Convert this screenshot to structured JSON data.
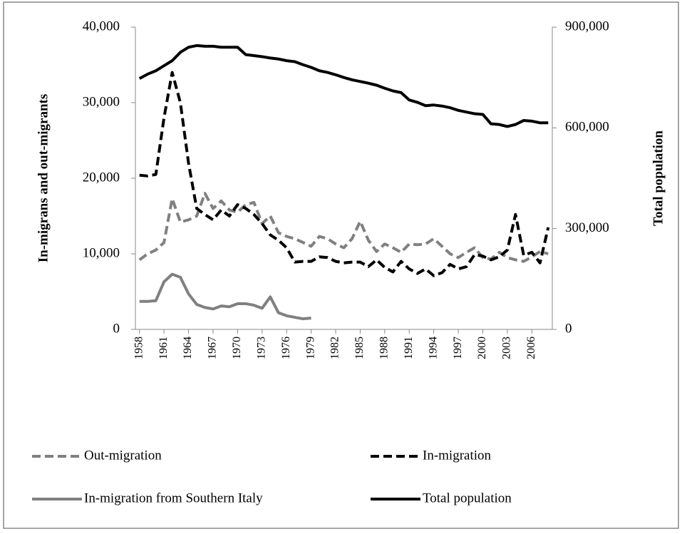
{
  "chart_data": {
    "type": "line",
    "ylabel": "In-migrans and out-migrants",
    "y2label": "Total population",
    "x": [
      1958,
      1959,
      1960,
      1961,
      1962,
      1963,
      1964,
      1965,
      1966,
      1967,
      1968,
      1969,
      1970,
      1971,
      1972,
      1973,
      1974,
      1975,
      1976,
      1977,
      1978,
      1979,
      1980,
      1981,
      1982,
      1983,
      1984,
      1985,
      1986,
      1987,
      1988,
      1989,
      1990,
      1991,
      1992,
      1993,
      1994,
      1995,
      1996,
      1997,
      1998,
      1999,
      2000,
      2001,
      2002,
      2003,
      2004,
      2005,
      2006,
      2007,
      2008
    ],
    "xlim": [
      1957.5,
      2008.5
    ],
    "xticks": [
      1958,
      1961,
      1964,
      1967,
      1970,
      1973,
      1976,
      1979,
      1982,
      1985,
      1988,
      1991,
      1994,
      1997,
      2000,
      2003,
      2006
    ],
    "ylim": [
      0,
      40000
    ],
    "yticks": [
      0,
      {
        "value": 10000,
        "label": "10,000"
      },
      {
        "value": 20000,
        "label": "20,000"
      },
      {
        "value": 30000,
        "label": "30,000"
      },
      {
        "value": 40000,
        "label": "40,000"
      }
    ],
    "y2lim": [
      0,
      900000
    ],
    "y2ticks": [
      0,
      {
        "value": 300000,
        "label": "300,000"
      },
      {
        "value": 600000,
        "label": "600,000"
      },
      {
        "value": 900000,
        "label": "900,000"
      }
    ],
    "grid": false,
    "legend": "bottom",
    "series": [
      {
        "name": "Out-migration",
        "color": "#808080",
        "dashed": true,
        "values": [
          9200,
          10000,
          10500,
          11500,
          17300,
          14200,
          14500,
          15000,
          18000,
          16000,
          17000,
          15800,
          15500,
          16500,
          16800,
          14000,
          15000,
          12800,
          12300,
          12000,
          11500,
          11000,
          12300,
          12000,
          11300,
          10800,
          12000,
          14300,
          11800,
          10300,
          11300,
          10800,
          10200,
          11300,
          11200,
          11300,
          12000,
          11000,
          10000,
          9500,
          10200,
          10800,
          9500,
          9300,
          10200,
          9500,
          9200,
          9000,
          9600,
          10300,
          10000
        ]
      },
      {
        "name": "In-migration",
        "color": "#000000",
        "dashed": true,
        "values": [
          20400,
          20300,
          20500,
          28000,
          34000,
          30000,
          22000,
          16000,
          15200,
          14500,
          15800,
          15000,
          16500,
          16000,
          15200,
          14000,
          12500,
          11800,
          10800,
          8900,
          9000,
          9000,
          9600,
          9500,
          9000,
          8800,
          8900,
          8900,
          8300,
          9200,
          8200,
          7600,
          9000,
          8000,
          7400,
          8000,
          7100,
          7500,
          8600,
          8000,
          8300,
          9900,
          9700,
          9200,
          9600,
          10500,
          15200,
          9800,
          10200,
          8800,
          13500
        ]
      },
      {
        "name": "In-migration from Southern Italy",
        "color": "#808080",
        "dashed": false,
        "values": [
          3700,
          3700,
          3800,
          6300,
          7300,
          6900,
          4700,
          3300,
          2900,
          2700,
          3100,
          3000,
          3400,
          3400,
          3200,
          2800,
          4300,
          2200,
          1800,
          1600,
          1400,
          1500,
          null,
          null,
          null,
          null,
          null,
          null,
          null,
          null,
          null,
          null,
          null,
          null,
          null,
          null,
          null,
          null,
          null,
          null,
          null,
          null,
          null,
          null,
          null,
          null,
          null,
          null,
          null,
          null,
          null
        ]
      },
      {
        "name": "Total population",
        "color": "#000000",
        "dashed": false,
        "axis": "y2",
        "values": [
          747000,
          760000,
          770000,
          785000,
          800000,
          825000,
          840000,
          845000,
          843000,
          843000,
          840000,
          840000,
          840000,
          818000,
          815000,
          812000,
          808000,
          805000,
          800000,
          797000,
          788000,
          780000,
          770000,
          765000,
          758000,
          750000,
          743000,
          738000,
          733000,
          727000,
          718000,
          710000,
          705000,
          683000,
          676000,
          666000,
          668000,
          665000,
          660000,
          652000,
          647000,
          642000,
          640000,
          612000,
          610000,
          604000,
          610000,
          622000,
          620000,
          615000,
          615000
        ]
      }
    ]
  }
}
